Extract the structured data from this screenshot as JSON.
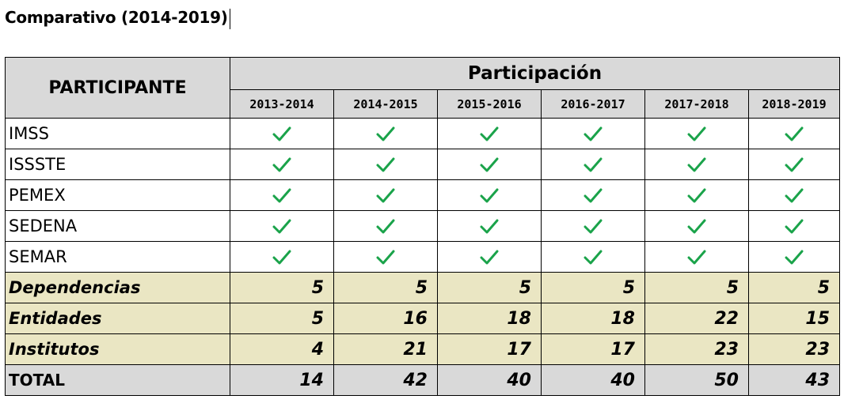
{
  "document": {
    "title": "Comparativo (2014-2019)"
  },
  "table": {
    "participant_header": "PARTICIPANTE",
    "group_header": "Participación",
    "years": [
      "2013-2014",
      "2014-2015",
      "2015-2016",
      "2016-2017",
      "2017-2018",
      "2018-2019"
    ],
    "check_icon": "check-icon",
    "check_color": "#1aa34a",
    "participants": [
      {
        "name": "IMSS",
        "years": [
          true,
          true,
          true,
          true,
          true,
          true
        ]
      },
      {
        "name": "ISSSTE",
        "years": [
          true,
          true,
          true,
          true,
          true,
          true
        ]
      },
      {
        "name": "PEMEX",
        "years": [
          true,
          true,
          true,
          true,
          true,
          true
        ]
      },
      {
        "name": "SEDENA",
        "years": [
          true,
          true,
          true,
          true,
          true,
          true
        ]
      },
      {
        "name": "SEMAR",
        "years": [
          true,
          true,
          true,
          true,
          true,
          true
        ]
      }
    ],
    "summary_rows": [
      {
        "label": "Dependencias",
        "values": [
          "5",
          "5",
          "5",
          "5",
          "5",
          "5"
        ]
      },
      {
        "label": "Entidades",
        "values": [
          "5",
          "16",
          "18",
          "18",
          "22",
          "15"
        ]
      },
      {
        "label": "Institutos",
        "values": [
          "4",
          "21",
          "17",
          "17",
          "23",
          "23"
        ]
      }
    ],
    "total_row": {
      "label": "TOTAL",
      "values": [
        "14",
        "42",
        "40",
        "40",
        "50",
        "43"
      ]
    },
    "colors": {
      "header_bg": "#d9d9d9",
      "summary_bg": "#eae6c3",
      "total_bg": "#d9d9d9"
    }
  }
}
